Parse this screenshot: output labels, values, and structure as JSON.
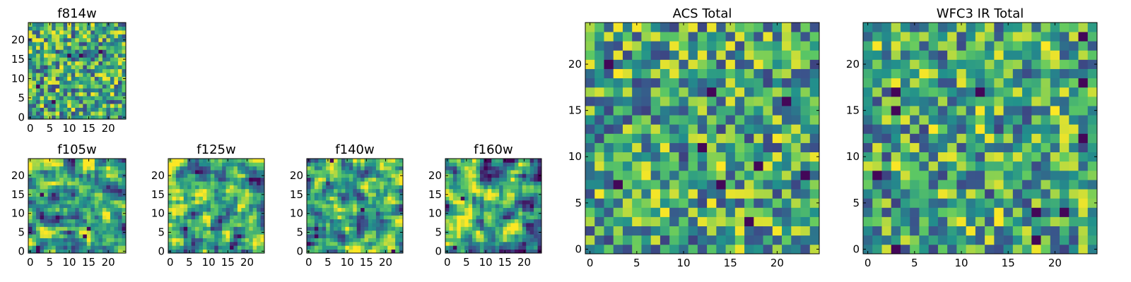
{
  "colormap": {
    "name": "viridis",
    "stops": [
      "#440154",
      "#3b528b",
      "#21918c",
      "#5ec962",
      "#fde725"
    ],
    "contrast_floor": 0.2
  },
  "chart_data": [
    {
      "type": "heatmap",
      "title": "f814w",
      "grid": [
        25,
        25
      ],
      "xlim": [
        0,
        24
      ],
      "ylim": [
        0,
        24
      ],
      "xticks": [
        0,
        5,
        10,
        15,
        20
      ],
      "yticks": [
        0,
        5,
        10,
        15,
        20
      ],
      "seed": 11,
      "noise": "pixel",
      "dark_pixels": [
        [
          10,
          16
        ],
        [
          13,
          16
        ],
        [
          6,
          4
        ],
        [
          18,
          17
        ],
        [
          2,
          8
        ]
      ]
    },
    {
      "type": "heatmap",
      "title": "f105w",
      "grid": [
        25,
        25
      ],
      "xlim": [
        0,
        24
      ],
      "ylim": [
        0,
        24
      ],
      "xticks": [
        0,
        5,
        10,
        15,
        20
      ],
      "yticks": [
        0,
        5,
        10,
        15,
        20
      ],
      "seed": 23,
      "noise": "smooth",
      "dark_pixels": [
        [
          14,
          4
        ],
        [
          15,
          6
        ],
        [
          2,
          0
        ],
        [
          2,
          1
        ],
        [
          3,
          15
        ]
      ]
    },
    {
      "type": "heatmap",
      "title": "f125w",
      "grid": [
        25,
        25
      ],
      "xlim": [
        0,
        24
      ],
      "ylim": [
        0,
        24
      ],
      "xticks": [
        0,
        5,
        10,
        15,
        20
      ],
      "yticks": [
        0,
        5,
        10,
        15,
        20
      ],
      "seed": 37,
      "noise": "smooth",
      "dark_pixels": [
        [
          16,
          1
        ],
        [
          4,
          6
        ]
      ]
    },
    {
      "type": "heatmap",
      "title": "f140w",
      "grid": [
        25,
        25
      ],
      "xlim": [
        0,
        24
      ],
      "ylim": [
        0,
        24
      ],
      "xticks": [
        0,
        5,
        10,
        15,
        20
      ],
      "yticks": [
        0,
        5,
        10,
        15,
        20
      ],
      "seed": 41,
      "noise": "smooth",
      "dark_pixels": [
        [
          6,
          24
        ],
        [
          14,
          11
        ],
        [
          2,
          4
        ],
        [
          22,
          0
        ]
      ]
    },
    {
      "type": "heatmap",
      "title": "f160w",
      "grid": [
        25,
        25
      ],
      "xlim": [
        0,
        24
      ],
      "ylim": [
        0,
        24
      ],
      "xticks": [
        0,
        5,
        10,
        15,
        20
      ],
      "yticks": [
        0,
        5,
        10,
        15,
        20
      ],
      "seed": 53,
      "noise": "smooth",
      "dark_pixels": [
        [
          11,
          20
        ],
        [
          4,
          14
        ],
        [
          0,
          12
        ],
        [
          2,
          1
        ]
      ]
    },
    {
      "type": "heatmap",
      "title": "ACS Total",
      "grid": [
        25,
        25
      ],
      "xlim": [
        0,
        24
      ],
      "ylim": [
        0,
        24
      ],
      "xticks": [
        0,
        5,
        10,
        15,
        20
      ],
      "yticks": [
        0,
        5,
        10,
        15,
        20
      ],
      "seed": 67,
      "noise": "pixel",
      "dark_pixels": [
        [
          2,
          20
        ],
        [
          13,
          17
        ],
        [
          12,
          11
        ],
        [
          18,
          9
        ],
        [
          23,
          8
        ],
        [
          14,
          7
        ],
        [
          17,
          3
        ],
        [
          21,
          16
        ],
        [
          3,
          7
        ]
      ]
    },
    {
      "type": "heatmap",
      "title": "WFC3 IR Total",
      "grid": [
        25,
        25
      ],
      "xlim": [
        0,
        24
      ],
      "ylim": [
        0,
        24
      ],
      "xticks": [
        0,
        5,
        10,
        15,
        20
      ],
      "yticks": [
        0,
        5,
        10,
        15,
        20
      ],
      "seed": 79,
      "noise": "pixel",
      "dark_pixels": [
        [
          23,
          23
        ],
        [
          23,
          18
        ],
        [
          3,
          17
        ],
        [
          12,
          17
        ],
        [
          3,
          15
        ],
        [
          23,
          12
        ],
        [
          18,
          4
        ],
        [
          21,
          4
        ],
        [
          18,
          1
        ],
        [
          1,
          8
        ],
        [
          3,
          0
        ]
      ]
    }
  ]
}
